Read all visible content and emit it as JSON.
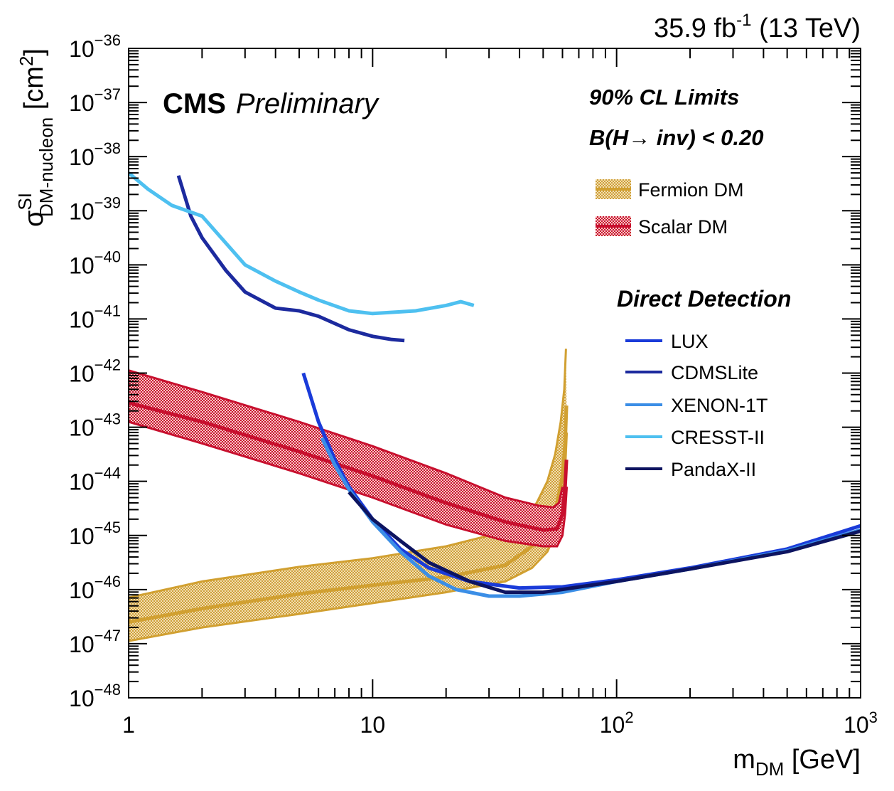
{
  "header": {
    "luminosity_value": "35.9 fb",
    "luminosity_exp": "-1",
    "energy": " (13 TeV)"
  },
  "labels": {
    "experiment": "CMS",
    "status": "Preliminary",
    "cl_title": "90% CL Limits",
    "br_prefix": "B(H",
    "br_arrow": "→",
    "br_suffix": " inv) < 0.20",
    "dd_title": "Direct Detection"
  },
  "chart_data": {
    "type": "line",
    "xscale": "log",
    "yscale": "log",
    "xlim": [
      1,
      1000
    ],
    "ylim": [
      1e-48,
      1e-36
    ],
    "xlabel": {
      "base": "m",
      "sub": "DM",
      "unit": " [GeV]"
    },
    "ylabel": {
      "base": "σ",
      "sup": "SI",
      "sub": "DM-nucleon",
      "unit": " [cm",
      "unit_sup": "2",
      "unit_end": "]"
    },
    "x_ticks": [
      {
        "value": 1,
        "label": "1",
        "exp": ""
      },
      {
        "value": 10,
        "label": "10",
        "exp": ""
      },
      {
        "value": 100,
        "label": "10",
        "exp": "2"
      },
      {
        "value": 1000,
        "label": "10",
        "exp": "3"
      }
    ],
    "y_ticks": [
      {
        "value": -48,
        "label": "10",
        "exp": "−48"
      },
      {
        "value": -47,
        "label": "10",
        "exp": "−47"
      },
      {
        "value": -46,
        "label": "10",
        "exp": "−46"
      },
      {
        "value": -45,
        "label": "10",
        "exp": "−45"
      },
      {
        "value": -44,
        "label": "10",
        "exp": "−44"
      },
      {
        "value": -43,
        "label": "10",
        "exp": "−43"
      },
      {
        "value": -42,
        "label": "10",
        "exp": "−42"
      },
      {
        "value": -41,
        "label": "10",
        "exp": "−41"
      },
      {
        "value": -40,
        "label": "10",
        "exp": "−40"
      },
      {
        "value": -39,
        "label": "10",
        "exp": "−39"
      },
      {
        "value": -38,
        "label": "10",
        "exp": "−38"
      },
      {
        "value": -37,
        "label": "10",
        "exp": "−37"
      },
      {
        "value": -36,
        "label": "10",
        "exp": "−36"
      }
    ],
    "bands": [
      {
        "name": "Fermion DM",
        "color": "#d1a031",
        "fill": "#e3c27a",
        "central": [
          [
            1,
            -46.6
          ],
          [
            2,
            -46.35
          ],
          [
            5,
            -46.08
          ],
          [
            10,
            -45.92
          ],
          [
            20,
            -45.77
          ],
          [
            35,
            -45.55
          ],
          [
            45,
            -45.2
          ],
          [
            52,
            -44.8
          ],
          [
            57,
            -44.4
          ],
          [
            60,
            -43.9
          ],
          [
            61.5,
            -43.3
          ],
          [
            62.3,
            -42.6
          ]
        ],
        "upper": [
          [
            1,
            -46.15
          ],
          [
            2,
            -45.85
          ],
          [
            5,
            -45.58
          ],
          [
            10,
            -45.42
          ],
          [
            20,
            -45.2
          ],
          [
            30,
            -45.0
          ],
          [
            40,
            -44.75
          ],
          [
            47,
            -44.4
          ],
          [
            52,
            -44.0
          ],
          [
            56,
            -43.5
          ],
          [
            59,
            -42.9
          ],
          [
            61,
            -42.3
          ],
          [
            62,
            -41.55
          ]
        ],
        "lower": [
          [
            1,
            -46.95
          ],
          [
            2,
            -46.7
          ],
          [
            5,
            -46.45
          ],
          [
            10,
            -46.25
          ],
          [
            20,
            -46.05
          ],
          [
            35,
            -45.85
          ],
          [
            45,
            -45.6
          ],
          [
            52,
            -45.3
          ],
          [
            57,
            -44.9
          ],
          [
            60,
            -44.4
          ],
          [
            61.5,
            -43.8
          ],
          [
            62.5,
            -43.1
          ]
        ]
      },
      {
        "name": "Scalar DM",
        "color": "#c8102e",
        "fill": "#e98a8a",
        "central": [
          [
            1,
            -42.55
          ],
          [
            2,
            -42.9
          ],
          [
            5,
            -43.45
          ],
          [
            10,
            -43.9
          ],
          [
            20,
            -44.4
          ],
          [
            35,
            -44.75
          ],
          [
            50,
            -44.9
          ],
          [
            57,
            -44.88
          ],
          [
            60,
            -44.6
          ],
          [
            61.5,
            -44.1
          ],
          [
            62.3,
            -43.6
          ]
        ],
        "upper": [
          [
            1,
            -41.95
          ],
          [
            2,
            -42.35
          ],
          [
            5,
            -42.9
          ],
          [
            10,
            -43.35
          ],
          [
            20,
            -43.85
          ],
          [
            35,
            -44.3
          ],
          [
            48,
            -44.45
          ],
          [
            55,
            -44.48
          ],
          [
            58,
            -44.4
          ],
          [
            60,
            -44.1
          ]
        ],
        "lower": [
          [
            1,
            -42.9
          ],
          [
            2,
            -43.3
          ],
          [
            5,
            -43.85
          ],
          [
            10,
            -44.3
          ],
          [
            20,
            -44.8
          ],
          [
            35,
            -45.1
          ],
          [
            50,
            -45.2
          ],
          [
            57,
            -45.2
          ],
          [
            60,
            -45.0
          ],
          [
            61.5,
            -44.6
          ],
          [
            62.5,
            -44.1
          ]
        ]
      }
    ],
    "series": [
      {
        "name": "LUX",
        "color": "#1a3bd9",
        "points": [
          [
            5.2,
            -42.0
          ],
          [
            6,
            -42.9
          ],
          [
            7,
            -43.6
          ],
          [
            8,
            -44.1
          ],
          [
            10,
            -44.7
          ],
          [
            13,
            -45.25
          ],
          [
            17,
            -45.6
          ],
          [
            25,
            -45.85
          ],
          [
            40,
            -45.97
          ],
          [
            60,
            -45.95
          ],
          [
            100,
            -45.82
          ],
          [
            200,
            -45.6
          ],
          [
            500,
            -45.25
          ],
          [
            1000,
            -44.82
          ]
        ]
      },
      {
        "name": "CDMSLite",
        "color": "#1c2a9e",
        "points": [
          [
            1.6,
            -38.35
          ],
          [
            1.8,
            -39.1
          ],
          [
            2,
            -39.5
          ],
          [
            2.5,
            -40.1
          ],
          [
            3,
            -40.5
          ],
          [
            4,
            -40.8
          ],
          [
            5,
            -40.85
          ],
          [
            6,
            -40.95
          ],
          [
            8,
            -41.2
          ],
          [
            10,
            -41.32
          ],
          [
            12,
            -41.38
          ],
          [
            13.5,
            -41.4
          ]
        ]
      },
      {
        "name": "XENON-1T",
        "color": "#3b8ee6",
        "points": [
          [
            6.2,
            -43.2
          ],
          [
            7,
            -43.7
          ],
          [
            8,
            -44.15
          ],
          [
            10,
            -44.75
          ],
          [
            13,
            -45.3
          ],
          [
            17,
            -45.75
          ],
          [
            22,
            -46.0
          ],
          [
            30,
            -46.12
          ],
          [
            40,
            -46.12
          ],
          [
            60,
            -46.05
          ],
          [
            100,
            -45.85
          ],
          [
            200,
            -45.62
          ],
          [
            500,
            -45.28
          ],
          [
            1000,
            -44.9
          ]
        ]
      },
      {
        "name": "CRESST-II",
        "color": "#4ec0f0",
        "points": [
          [
            1,
            -38.3
          ],
          [
            1.2,
            -38.6
          ],
          [
            1.5,
            -38.9
          ],
          [
            2,
            -39.1
          ],
          [
            3,
            -40.0
          ],
          [
            4,
            -40.3
          ],
          [
            5,
            -40.5
          ],
          [
            6,
            -40.65
          ],
          [
            8,
            -40.85
          ],
          [
            10,
            -40.9
          ],
          [
            15,
            -40.85
          ],
          [
            20,
            -40.75
          ],
          [
            23,
            -40.68
          ],
          [
            26,
            -40.75
          ]
        ]
      },
      {
        "name": "PandaX-II",
        "color": "#0d1460",
        "points": [
          [
            8,
            -44.2
          ],
          [
            10,
            -44.7
          ],
          [
            13,
            -45.1
          ],
          [
            17,
            -45.5
          ],
          [
            25,
            -45.85
          ],
          [
            35,
            -46.05
          ],
          [
            50,
            -46.05
          ],
          [
            100,
            -45.85
          ],
          [
            200,
            -45.62
          ],
          [
            500,
            -45.3
          ],
          [
            1000,
            -44.92
          ]
        ]
      }
    ],
    "grid": false,
    "legend": "top-right"
  }
}
